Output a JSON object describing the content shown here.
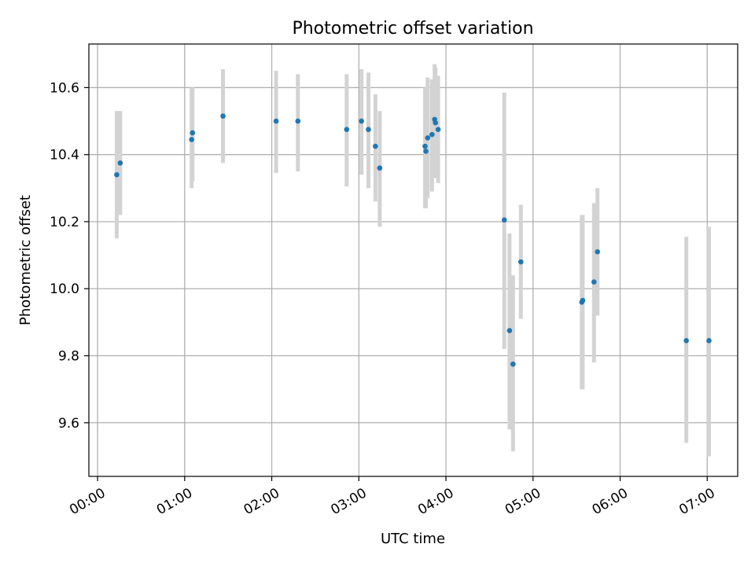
{
  "chart_data": {
    "type": "scatter",
    "title": "Photometric offset variation",
    "xlabel": "UTC time",
    "ylabel": "Photometric offset",
    "x_unit": "UTC time of day (hours)",
    "xlim": [
      -0.1,
      7.35
    ],
    "ylim": [
      9.44,
      10.73
    ],
    "x_ticks": [
      {
        "value": 0,
        "label": "00:00"
      },
      {
        "value": 1,
        "label": "01:00"
      },
      {
        "value": 2,
        "label": "02:00"
      },
      {
        "value": 3,
        "label": "03:00"
      },
      {
        "value": 4,
        "label": "04:00"
      },
      {
        "value": 5,
        "label": "05:00"
      },
      {
        "value": 6,
        "label": "06:00"
      },
      {
        "value": 7,
        "label": "07:00"
      }
    ],
    "y_ticks": [
      {
        "value": 9.6,
        "label": "9.6"
      },
      {
        "value": 9.8,
        "label": "9.8"
      },
      {
        "value": 10.0,
        "label": "10.0"
      },
      {
        "value": 10.2,
        "label": "10.2"
      },
      {
        "value": 10.4,
        "label": "10.4"
      },
      {
        "value": 10.6,
        "label": "10.6"
      }
    ],
    "grid": true,
    "marker_color": "#1f77b4",
    "errorbar_color": "#d3d3d3",
    "points": [
      {
        "x": 0.22,
        "y": 10.34,
        "low": 10.15,
        "high": 10.53
      },
      {
        "x": 0.26,
        "y": 10.375,
        "low": 10.22,
        "high": 10.53
      },
      {
        "x": 1.08,
        "y": 10.445,
        "low": 10.3,
        "high": 10.6
      },
      {
        "x": 1.09,
        "y": 10.465,
        "low": 10.32,
        "high": 10.6
      },
      {
        "x": 1.44,
        "y": 10.515,
        "low": 10.375,
        "high": 10.655
      },
      {
        "x": 2.05,
        "y": 10.5,
        "low": 10.345,
        "high": 10.65
      },
      {
        "x": 2.3,
        "y": 10.5,
        "low": 10.35,
        "high": 10.64
      },
      {
        "x": 2.86,
        "y": 10.475,
        "low": 10.305,
        "high": 10.64
      },
      {
        "x": 3.03,
        "y": 10.5,
        "low": 10.34,
        "high": 10.655
      },
      {
        "x": 3.11,
        "y": 10.475,
        "low": 10.3,
        "high": 10.645
      },
      {
        "x": 3.19,
        "y": 10.425,
        "low": 10.26,
        "high": 10.58
      },
      {
        "x": 3.24,
        "y": 10.36,
        "low": 10.185,
        "high": 10.53
      },
      {
        "x": 3.76,
        "y": 10.425,
        "low": 10.24,
        "high": 10.6
      },
      {
        "x": 3.77,
        "y": 10.41,
        "low": 10.24,
        "high": 10.6
      },
      {
        "x": 3.79,
        "y": 10.45,
        "low": 10.27,
        "high": 10.63
      },
      {
        "x": 3.84,
        "y": 10.46,
        "low": 10.29,
        "high": 10.625
      },
      {
        "x": 3.87,
        "y": 10.505,
        "low": 10.34,
        "high": 10.67
      },
      {
        "x": 3.88,
        "y": 10.495,
        "low": 10.33,
        "high": 10.66
      },
      {
        "x": 3.91,
        "y": 10.475,
        "low": 10.315,
        "high": 10.635
      },
      {
        "x": 4.67,
        "y": 10.205,
        "low": 9.82,
        "high": 10.585
      },
      {
        "x": 4.73,
        "y": 9.875,
        "low": 9.58,
        "high": 10.165
      },
      {
        "x": 4.77,
        "y": 9.775,
        "low": 9.515,
        "high": 10.04
      },
      {
        "x": 4.86,
        "y": 10.08,
        "low": 9.91,
        "high": 10.25
      },
      {
        "x": 5.56,
        "y": 9.96,
        "low": 9.7,
        "high": 10.22
      },
      {
        "x": 5.57,
        "y": 9.965,
        "low": 9.7,
        "high": 10.22
      },
      {
        "x": 5.7,
        "y": 10.02,
        "low": 9.78,
        "high": 10.255
      },
      {
        "x": 5.74,
        "y": 10.11,
        "low": 9.92,
        "high": 10.3
      },
      {
        "x": 6.76,
        "y": 9.845,
        "low": 9.54,
        "high": 10.155
      },
      {
        "x": 7.02,
        "y": 9.845,
        "low": 9.5,
        "high": 10.185
      }
    ]
  }
}
